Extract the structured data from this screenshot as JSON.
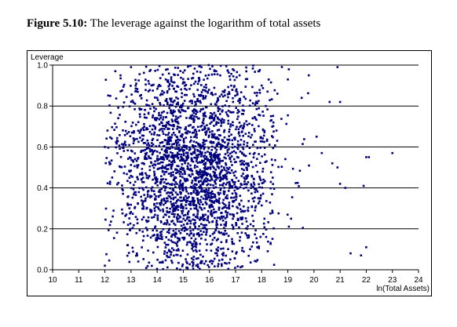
{
  "caption": {
    "label": "Figure 5.10:",
    "text": " The leverage against the logarithm of total assets"
  },
  "chart_data": {
    "type": "scatter",
    "title": "",
    "xlabel": "ln(Total Assets)",
    "ylabel": "Leverage",
    "xlim": [
      10,
      24
    ],
    "ylim": [
      0.0,
      1.0
    ],
    "x_ticks": [
      "10",
      "11",
      "12",
      "13",
      "14",
      "15",
      "16",
      "17",
      "18",
      "19",
      "20",
      "21",
      "22",
      "23",
      "24"
    ],
    "y_ticks": [
      "0.0",
      "0.2",
      "0.4",
      "0.6",
      "0.8",
      "1.0"
    ],
    "grid": "horizontal",
    "marker_color": "#00007f",
    "distribution": {
      "approx_points": 2600,
      "x_mean": 15.4,
      "x_sd": 1.55,
      "x_range": [
        12,
        23
      ],
      "y_range": [
        0.0,
        1.0
      ],
      "y_shape": "hump centered near 0.5 with heavy concentration between 0.2 and 0.8"
    },
    "points": [
      [
        12.0,
        0.02
      ],
      [
        12.0,
        0.6
      ],
      [
        12.1,
        0.68
      ],
      [
        12.2,
        0.43
      ],
      [
        12.3,
        0.26
      ],
      [
        12.4,
        0.97
      ],
      [
        12.6,
        0.95
      ],
      [
        13.0,
        0.99
      ],
      [
        17.9,
        0.97
      ],
      [
        18.0,
        0.9
      ],
      [
        18.6,
        0.86
      ],
      [
        19.0,
        0.93
      ],
      [
        19.8,
        0.95
      ],
      [
        20.1,
        0.65
      ],
      [
        20.3,
        0.57
      ],
      [
        20.6,
        0.82
      ],
      [
        20.7,
        0.52
      ],
      [
        20.9,
        0.5
      ],
      [
        20.9,
        0.99
      ],
      [
        21.0,
        0.82
      ],
      [
        21.0,
        0.42
      ],
      [
        21.2,
        0.4
      ],
      [
        21.4,
        0.08
      ],
      [
        21.8,
        0.07
      ],
      [
        21.9,
        0.41
      ],
      [
        22.0,
        0.55
      ],
      [
        22.1,
        0.55
      ],
      [
        22.0,
        0.11
      ],
      [
        23.0,
        0.57
      ]
    ]
  }
}
